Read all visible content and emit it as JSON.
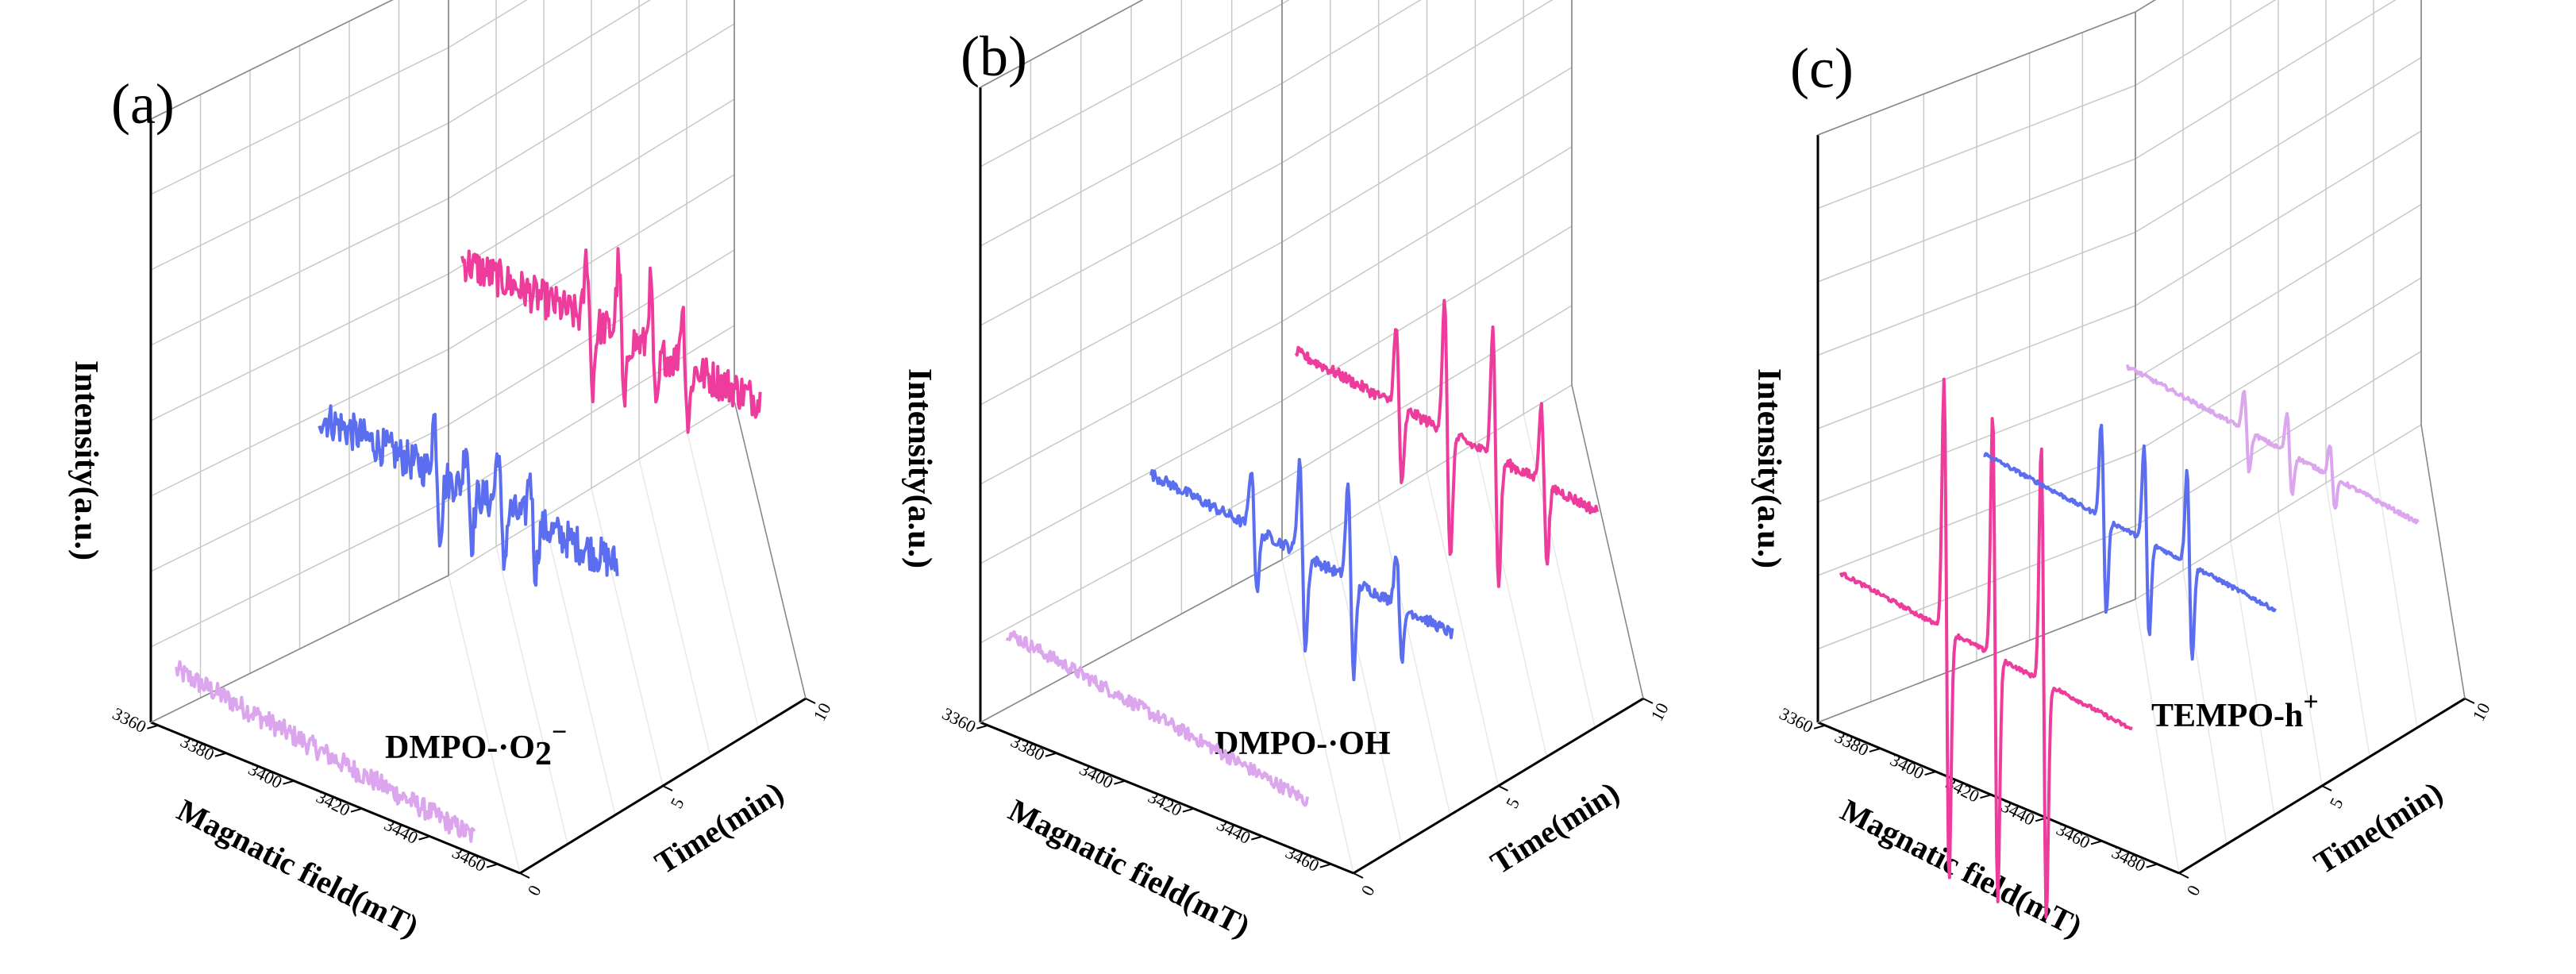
{
  "figure_colors": {
    "axis": "#000000",
    "grid": "#c8c8c8",
    "pink": "#ee3c9c",
    "blue": "#5b6ef0",
    "lavender": "#dca6ee"
  },
  "chart_data": [
    {
      "type": "line",
      "panel_label": "(a)",
      "annotation": {
        "text": "DMPO-·O",
        "formula_sub": "2",
        "formula_sup": "−"
      },
      "zlabel": "Intensity(a.u.)",
      "xlabel": "Magnatic field(mT)",
      "ylabel": "Time(min)",
      "xlim": [
        3360,
        3470
      ],
      "xticks": [
        "3360",
        "3380",
        "3400",
        "3420",
        "3440",
        "3460"
      ],
      "ylim": [
        0,
        10
      ],
      "yticks": [
        "0",
        "5",
        "10"
      ],
      "series": [
        {
          "name": "0 min",
          "time": 0,
          "color": "#dca6ee",
          "level": 0.2,
          "peaks": [],
          "noise": 0.1,
          "tilt": 0.25
        },
        {
          "name": "5 min",
          "time": 5,
          "color": "#5b6ef0",
          "level": 0.7,
          "peaks": [
            {
              "x": 3405,
              "amp": 0.35
            },
            {
              "x": 3415,
              "amp": 0.3
            },
            {
              "x": 3425,
              "amp": 0.35
            },
            {
              "x": 3435,
              "amp": 0.3
            }
          ],
          "noise": 0.18,
          "tilt": 0.15
        },
        {
          "name": "10 min",
          "time": 10,
          "color": "#ee3c9c",
          "level": 0.9,
          "peaks": [
            {
              "x": 3408,
              "amp": 0.4
            },
            {
              "x": 3418,
              "amp": 0.45
            },
            {
              "x": 3428,
              "amp": 0.4
            },
            {
              "x": 3438,
              "amp": 0.35
            }
          ],
          "noise": 0.18,
          "tilt": 0.1
        }
      ]
    },
    {
      "type": "line",
      "panel_label": "(b)",
      "annotation": {
        "text": "DMPO-·OH",
        "formula_sub": "",
        "formula_sup": ""
      },
      "zlabel": "Intensity(a.u.)",
      "xlabel": "Magnatic field(mT)",
      "ylabel": "Time(min)",
      "xlim": [
        3360,
        3470
      ],
      "xticks": [
        "3360",
        "3380",
        "3400",
        "3420",
        "3440",
        "3460"
      ],
      "ylim": [
        0,
        10
      ],
      "yticks": [
        "0",
        "5",
        "10"
      ],
      "series": [
        {
          "name": "0 min",
          "time": 0,
          "color": "#dca6ee",
          "level": 0.3,
          "peaks": [],
          "noise": 0.06,
          "tilt": 0.25
        },
        {
          "name": "5 min",
          "time": 5,
          "color": "#5b6ef0",
          "level": 0.5,
          "peaks": [
            {
              "x": 3400,
              "amp": 0.35
            },
            {
              "x": 3415,
              "amp": 0.55
            },
            {
              "x": 3430,
              "amp": 0.55
            },
            {
              "x": 3445,
              "amp": 0.3
            }
          ],
          "noise": 0.05,
          "tilt": 0.2
        },
        {
          "name": "10 min",
          "time": 10,
          "color": "#ee3c9c",
          "level": 0.6,
          "peaks": [
            {
              "x": 3400,
              "amp": 0.45
            },
            {
              "x": 3415,
              "amp": 0.75
            },
            {
              "x": 3430,
              "amp": 0.75
            },
            {
              "x": 3445,
              "amp": 0.45
            }
          ],
          "noise": 0.05,
          "tilt": 0.2
        }
      ]
    },
    {
      "type": "line",
      "panel_label": "(c)",
      "annotation": {
        "text": "TEMPO-h",
        "formula_sub": "",
        "formula_sup": "+"
      },
      "zlabel": "Intensity(a.u.)",
      "xlabel": "Magnatic field(mT)",
      "ylabel": "Time(min)",
      "xlim": [
        3360,
        3480
      ],
      "xticks": [
        "3360",
        "3380",
        "3400",
        "3420",
        "3440",
        "3460",
        "3480"
      ],
      "ylim": [
        0,
        10
      ],
      "yticks": [
        "0",
        "5",
        "10"
      ],
      "series": [
        {
          "name": "0 min",
          "time": 0,
          "color": "#ee3c9c",
          "level": 0.5,
          "peaks": [
            {
              "x": 3405,
              "amp": 1.6
            },
            {
              "x": 3422,
              "amp": 1.55
            },
            {
              "x": 3439,
              "amp": 1.5
            }
          ],
          "noise": 0.02,
          "tilt": 0.2
        },
        {
          "name": "5 min",
          "time": 5,
          "color": "#5b6ef0",
          "level": 0.6,
          "peaks": [
            {
              "x": 3410,
              "amp": 0.6
            },
            {
              "x": 3425,
              "amp": 0.6
            },
            {
              "x": 3440,
              "amp": 0.6
            }
          ],
          "noise": 0.02,
          "tilt": 0.2
        },
        {
          "name": "10 min",
          "time": 10,
          "color": "#dca6ee",
          "level": 0.6,
          "peaks": [
            {
              "x": 3410,
              "amp": 0.25
            },
            {
              "x": 3425,
              "amp": 0.25
            },
            {
              "x": 3440,
              "amp": 0.2
            }
          ],
          "noise": 0.02,
          "tilt": 0.2
        }
      ]
    }
  ]
}
